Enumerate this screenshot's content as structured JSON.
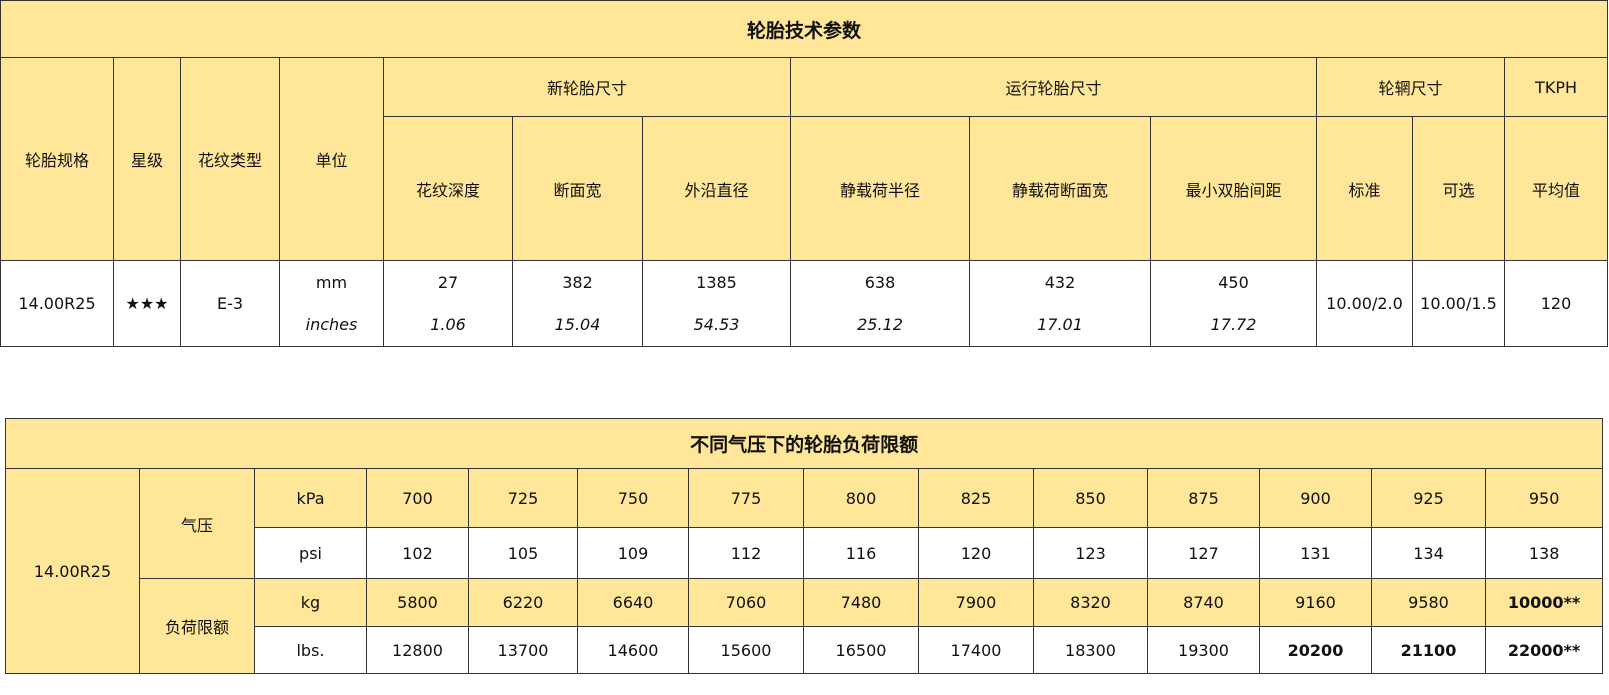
{
  "colors": {
    "header_fill": "#FFE699",
    "body_fill": "#FFFFFF",
    "border": "#333333"
  },
  "spec_table": {
    "title": "轮胎技术参数",
    "headers": {
      "tire_size": "轮胎规格",
      "star_rating": "星级",
      "tread_type": "花纹类型",
      "unit": "单位",
      "new_tire_dims": "新轮胎尺寸",
      "running_tire_dims": "运行轮胎尺寸",
      "rim_size": "轮辋尺寸",
      "tkph": "TKPH",
      "tread_depth": "花纹深度",
      "section_width": "断面宽",
      "overall_diameter": "外沿直径",
      "static_loaded_radius": "静载荷半径",
      "static_loaded_width": "静载荷断面宽",
      "min_dual_spacing": "最小双胎间距",
      "rim_standard": "标准",
      "rim_optional": "可选",
      "tkph_average": "平均值"
    },
    "row": {
      "tire_size": "14.00R25",
      "star_rating": "★★★",
      "tread_type": "E-3",
      "unit_mm": "mm",
      "unit_inches": "inches",
      "tread_depth": {
        "mm": "27",
        "in": "1.06"
      },
      "section_width": {
        "mm": "382",
        "in": "15.04"
      },
      "overall_diameter": {
        "mm": "1385",
        "in": "54.53"
      },
      "static_loaded_radius": {
        "mm": "638",
        "in": "25.12"
      },
      "static_loaded_width": {
        "mm": "432",
        "in": "17.01"
      },
      "min_dual_spacing": {
        "mm": "450",
        "in": "17.72"
      },
      "rim_standard": "10.00/2.0",
      "rim_optional": "10.00/1.5",
      "tkph_average": "120"
    }
  },
  "load_table": {
    "title": "不同气压下的轮胎负荷限额",
    "tire_size": "14.00R25",
    "pressure_label": "气压",
    "load_label": "负荷限额",
    "rows": [
      {
        "unit": "kPa",
        "fill": "yellow",
        "values": [
          "700",
          "725",
          "750",
          "775",
          "800",
          "825",
          "850",
          "875",
          "900",
          "925",
          "950"
        ],
        "bold": []
      },
      {
        "unit": "psi",
        "fill": "white",
        "values": [
          "102",
          "105",
          "109",
          "112",
          "116",
          "120",
          "123",
          "127",
          "131",
          "134",
          "138"
        ],
        "bold": []
      },
      {
        "unit": "kg",
        "fill": "yellow",
        "values": [
          "5800",
          "6220",
          "6640",
          "7060",
          "7480",
          "7900",
          "8320",
          "8740",
          "9160",
          "9580",
          "10000**"
        ],
        "bold": [
          10
        ]
      },
      {
        "unit": "lbs.",
        "fill": "white",
        "values": [
          "12800",
          "13700",
          "14600",
          "15600",
          "16500",
          "17400",
          "18300",
          "19300",
          "20200",
          "21100",
          "22000**"
        ],
        "bold": [
          8,
          9,
          10
        ]
      }
    ]
  }
}
